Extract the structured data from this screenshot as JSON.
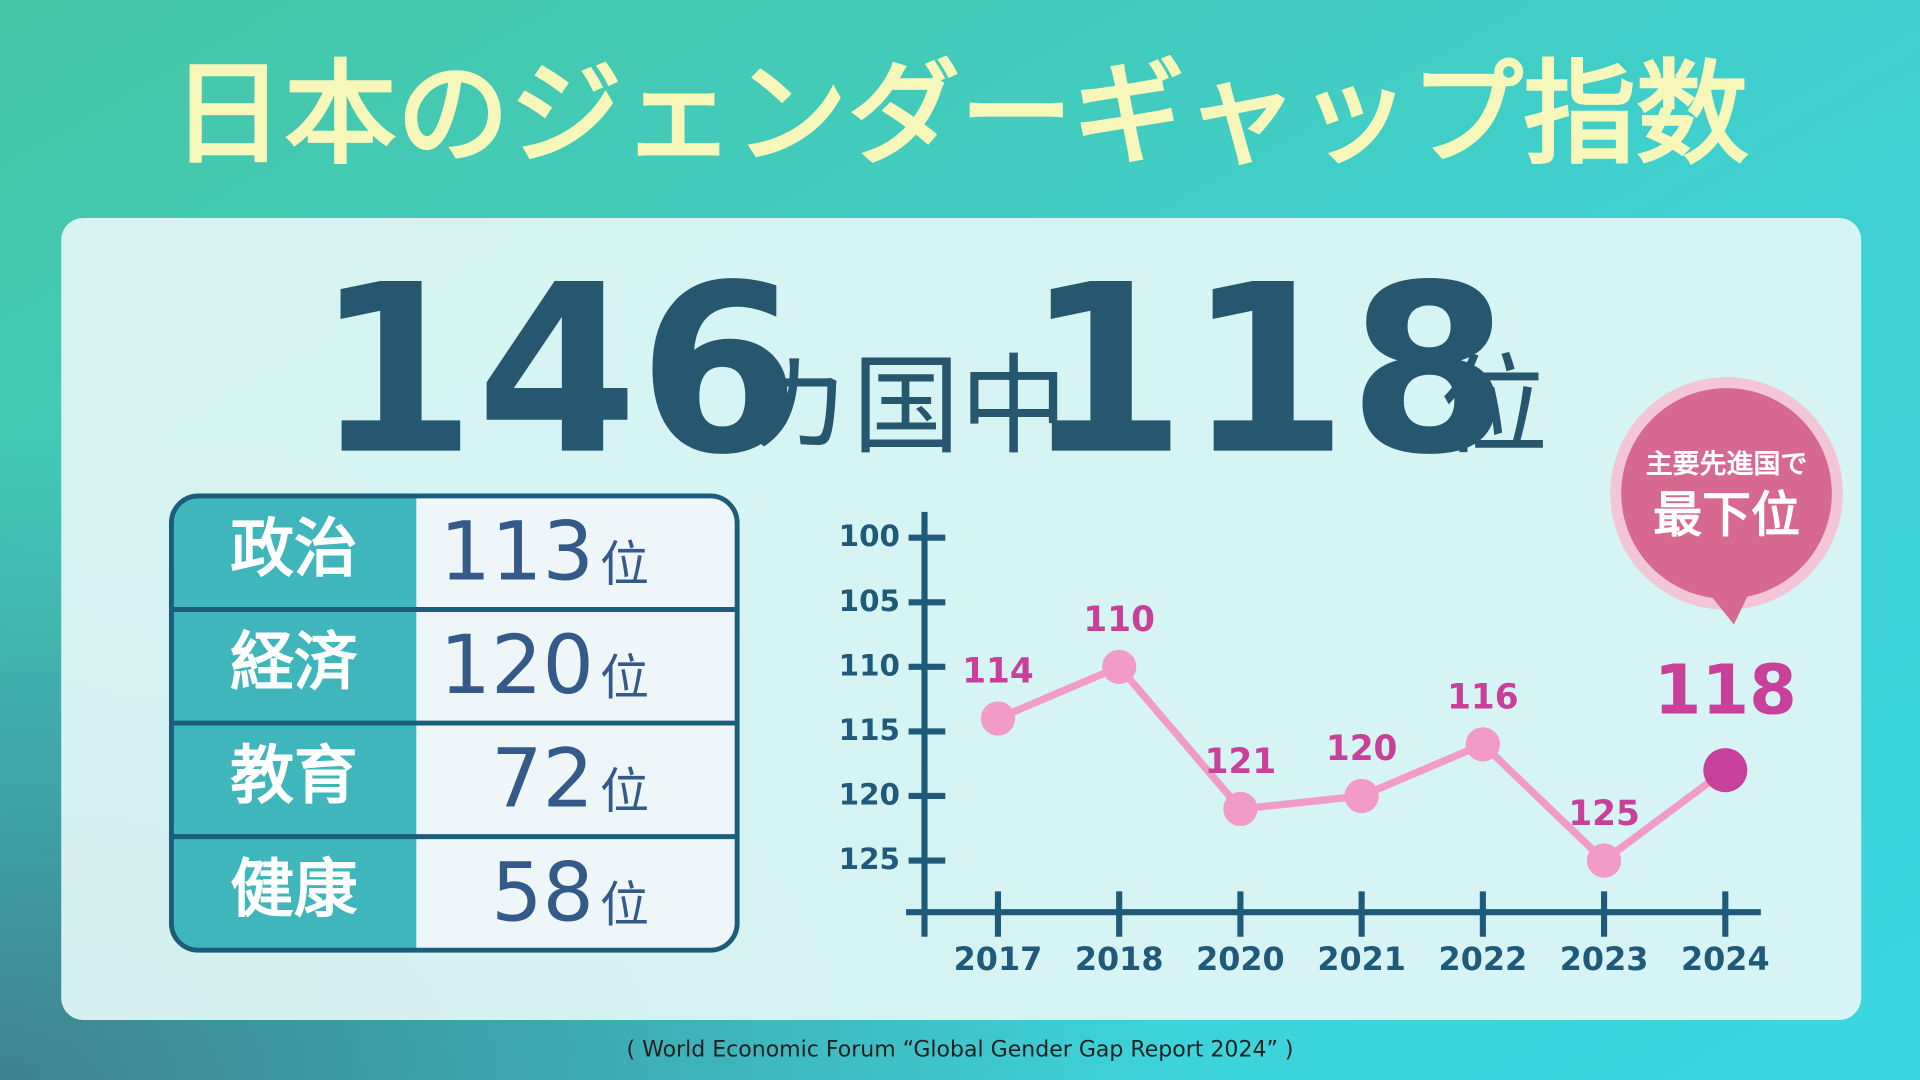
{
  "header": {
    "title": "日本のジェンダーギャップ指数"
  },
  "headline": {
    "total": 146,
    "total_unit": "カ国中",
    "rank": 118,
    "rank_unit": "位"
  },
  "table": {
    "unit": "位",
    "rows": [
      [
        "政治",
        113
      ],
      [
        "経済",
        120
      ],
      [
        "教育",
        72
      ],
      [
        "健康",
        58
      ]
    ]
  },
  "callout": {
    "line1": "主要先進国で",
    "line2": "最下位"
  },
  "chart_data": {
    "type": "line",
    "categories": [
      "2017",
      "2018",
      "2020",
      "2021",
      "2022",
      "2023",
      "2024"
    ],
    "values": [
      114,
      110,
      121,
      120,
      116,
      125,
      118
    ],
    "color": "#f29ac8",
    "highlight_color": "#c8409a",
    "ylim": [
      98,
      129
    ],
    "yticks": [
      100,
      105,
      110,
      115,
      120,
      125
    ],
    "invert_y": true,
    "grid": false
  },
  "source": "( World Economic Forum “Global Gender Gap Report 2024” )"
}
